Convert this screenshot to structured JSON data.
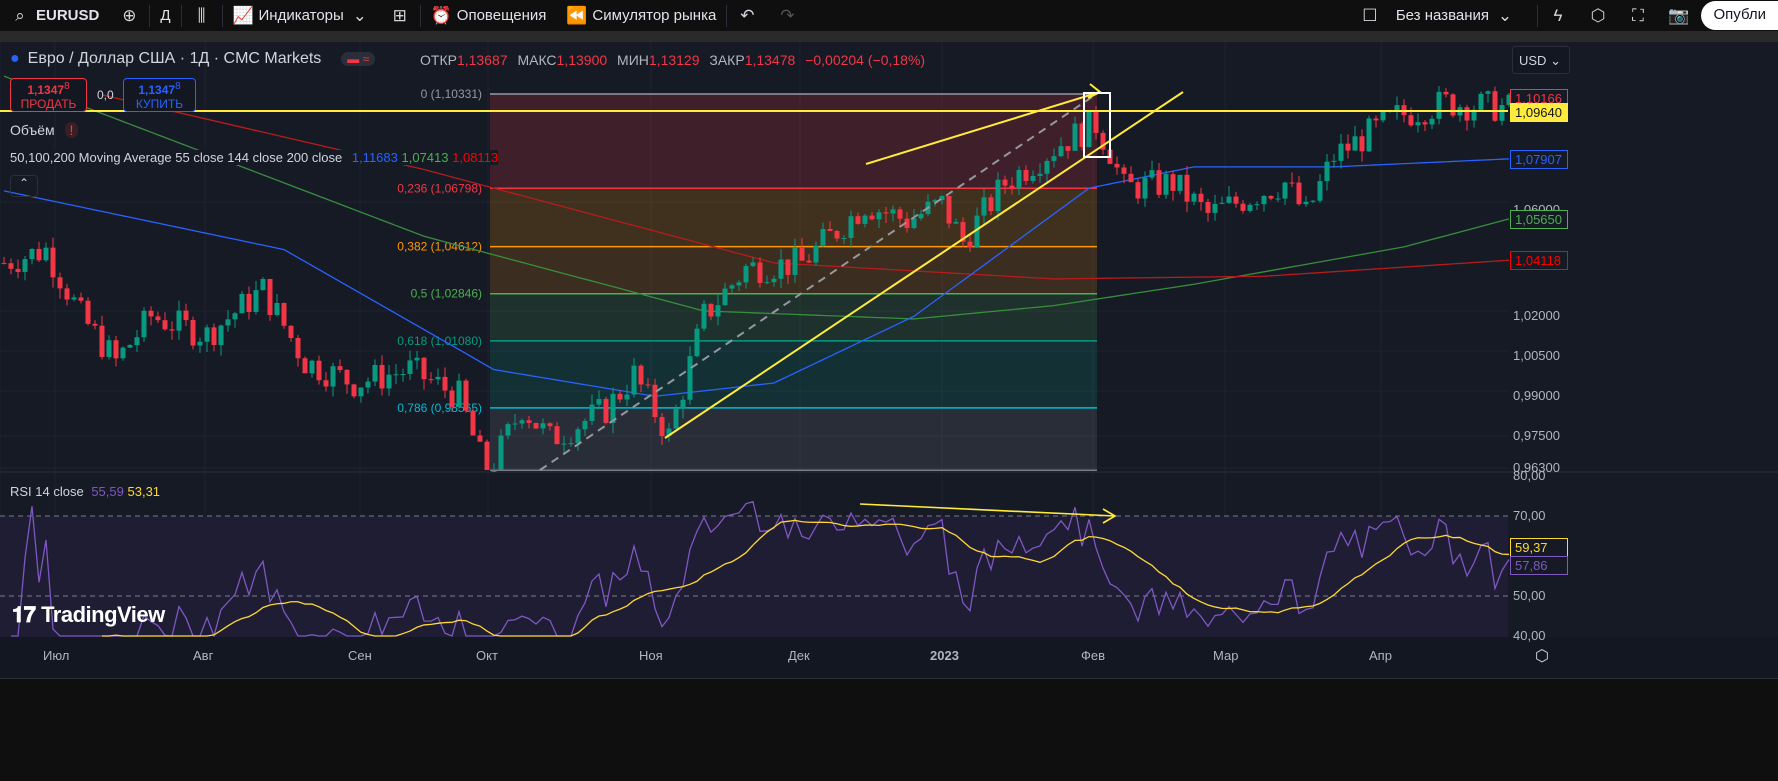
{
  "toolbar": {
    "symbol": "EURUSD",
    "interval": "Д",
    "indicators": "Индикаторы",
    "alerts": "Оповещения",
    "replay": "Симулятор рынка",
    "layout_name": "Без названия",
    "publish": "Опубли"
  },
  "legend": {
    "title": "Евро / Доллар США · 1Д · CMC Markets",
    "open_label": "ОТКР",
    "open": "1,13687",
    "high_label": "МАКС",
    "high": "1,13900",
    "low_label": "МИН",
    "low": "1,13129",
    "close_label": "ЗАКР",
    "close": "1,13478",
    "change": "−0,00204 (−0,18%)",
    "sell_price": "1,1347",
    "sell_sup": "8",
    "sell_label": "ПРОДАТЬ",
    "spread": "0,0",
    "buy_price": "1,1347",
    "buy_sup": "8",
    "buy_label": "КУПИТЬ",
    "volume": "Объём",
    "ma_title": "50,100,200 Moving Average 55 close 144 close 200 close",
    "ma1": "1,11683",
    "ma2": "1,07413",
    "ma3": "1,08113"
  },
  "currency": "USD",
  "price_axis": [
    "1,06000",
    "1,02000",
    "1,00500",
    "0,99000",
    "0,97500",
    "0,96300"
  ],
  "price_tags": [
    {
      "v": "1,10166",
      "c": "#f23645"
    },
    {
      "v": "1,09640",
      "c": "#ffeb3b"
    },
    {
      "v": "1,07907",
      "c": "#2962ff"
    },
    {
      "v": "1,05650",
      "c": "#4caf50"
    },
    {
      "v": "1,04118",
      "c": "#ff0000"
    }
  ],
  "fib": [
    {
      "label": "0 (1,10331)",
      "p": 1.10331,
      "c": "#9598a1"
    },
    {
      "label": "0,236 (1,06798)",
      "p": 1.06798,
      "c": "#f23645"
    },
    {
      "label": "0,382 (1,04612)",
      "p": 1.04612,
      "c": "#ff9800"
    },
    {
      "label": "0,5 (1,02846)",
      "p": 1.02846,
      "c": "#4caf50"
    },
    {
      "label": "0,618 (1,01080)",
      "p": 1.0108,
      "c": "#089981"
    },
    {
      "label": "0,786 (0,98565)",
      "p": 0.98565,
      "c": "#00bcd4"
    },
    {
      "label": "",
      "p": 0.9623,
      "c": "#787b86"
    }
  ],
  "rsi": {
    "title": "RSI 14 close",
    "v1": "55,59",
    "v2": "53,31",
    "axis": [
      "80,00",
      "70,00",
      "50,00",
      "40,00"
    ],
    "tag1": "59,37",
    "tag2": "57,86"
  },
  "months": [
    "Июл",
    "Авг",
    "Сен",
    "Окт",
    "Ноя",
    "Дек",
    "2023",
    "Фев",
    "Мар",
    "Апр"
  ],
  "price_path": [
    [
      0,
      1.04
    ],
    [
      6,
      1.045
    ],
    [
      11,
      1.02
    ],
    [
      16,
      1.003
    ],
    [
      21,
      1.02
    ],
    [
      29,
      1.013
    ],
    [
      37,
      1.03
    ],
    [
      43,
      1.003
    ],
    [
      50,
      0.995
    ],
    [
      58,
      1.0
    ],
    [
      65,
      0.99
    ],
    [
      69,
      0.96
    ],
    [
      74,
      0.986
    ],
    [
      78,
      0.974
    ],
    [
      86,
      0.985
    ],
    [
      90,
      0.998
    ],
    [
      95,
      0.975
    ],
    [
      100,
      1.02
    ],
    [
      106,
      1.038
    ],
    [
      114,
      1.04
    ],
    [
      123,
      1.062
    ],
    [
      129,
      1.056
    ],
    [
      134,
      1.062
    ],
    [
      137,
      1.048
    ],
    [
      143,
      1.07
    ],
    [
      151,
      1.085
    ],
    [
      156,
      1.092
    ],
    [
      158,
      1.082
    ],
    [
      160,
      1.068
    ],
    [
      167,
      1.07
    ],
    [
      172,
      1.058
    ],
    [
      179,
      1.066
    ],
    [
      183,
      1.07
    ],
    [
      186,
      1.058
    ],
    [
      190,
      1.08
    ],
    [
      199,
      1.095
    ],
    [
      206,
      1.1
    ],
    [
      215,
      1.098
    ]
  ],
  "ma_paths": {
    "ma55": [
      [
        0,
        1.067
      ],
      [
        40,
        1.045
      ],
      [
        70,
        1.0
      ],
      [
        93,
        0.99
      ],
      [
        110,
        0.995
      ],
      [
        130,
        1.02
      ],
      [
        155,
        1.068
      ],
      [
        170,
        1.076
      ],
      [
        190,
        1.076
      ],
      [
        215,
        1.079
      ]
    ],
    "ma144": [
      [
        0,
        1.11
      ],
      [
        60,
        1.05
      ],
      [
        100,
        1.022
      ],
      [
        130,
        1.019
      ],
      [
        150,
        1.024
      ],
      [
        170,
        1.032
      ],
      [
        200,
        1.046
      ],
      [
        215,
        1.0565
      ]
    ],
    "ma200": [
      [
        14,
        1.103
      ],
      [
        60,
        1.075
      ],
      [
        110,
        1.04
      ],
      [
        150,
        1.034
      ],
      [
        180,
        1.035
      ],
      [
        215,
        1.041
      ]
    ]
  }
}
